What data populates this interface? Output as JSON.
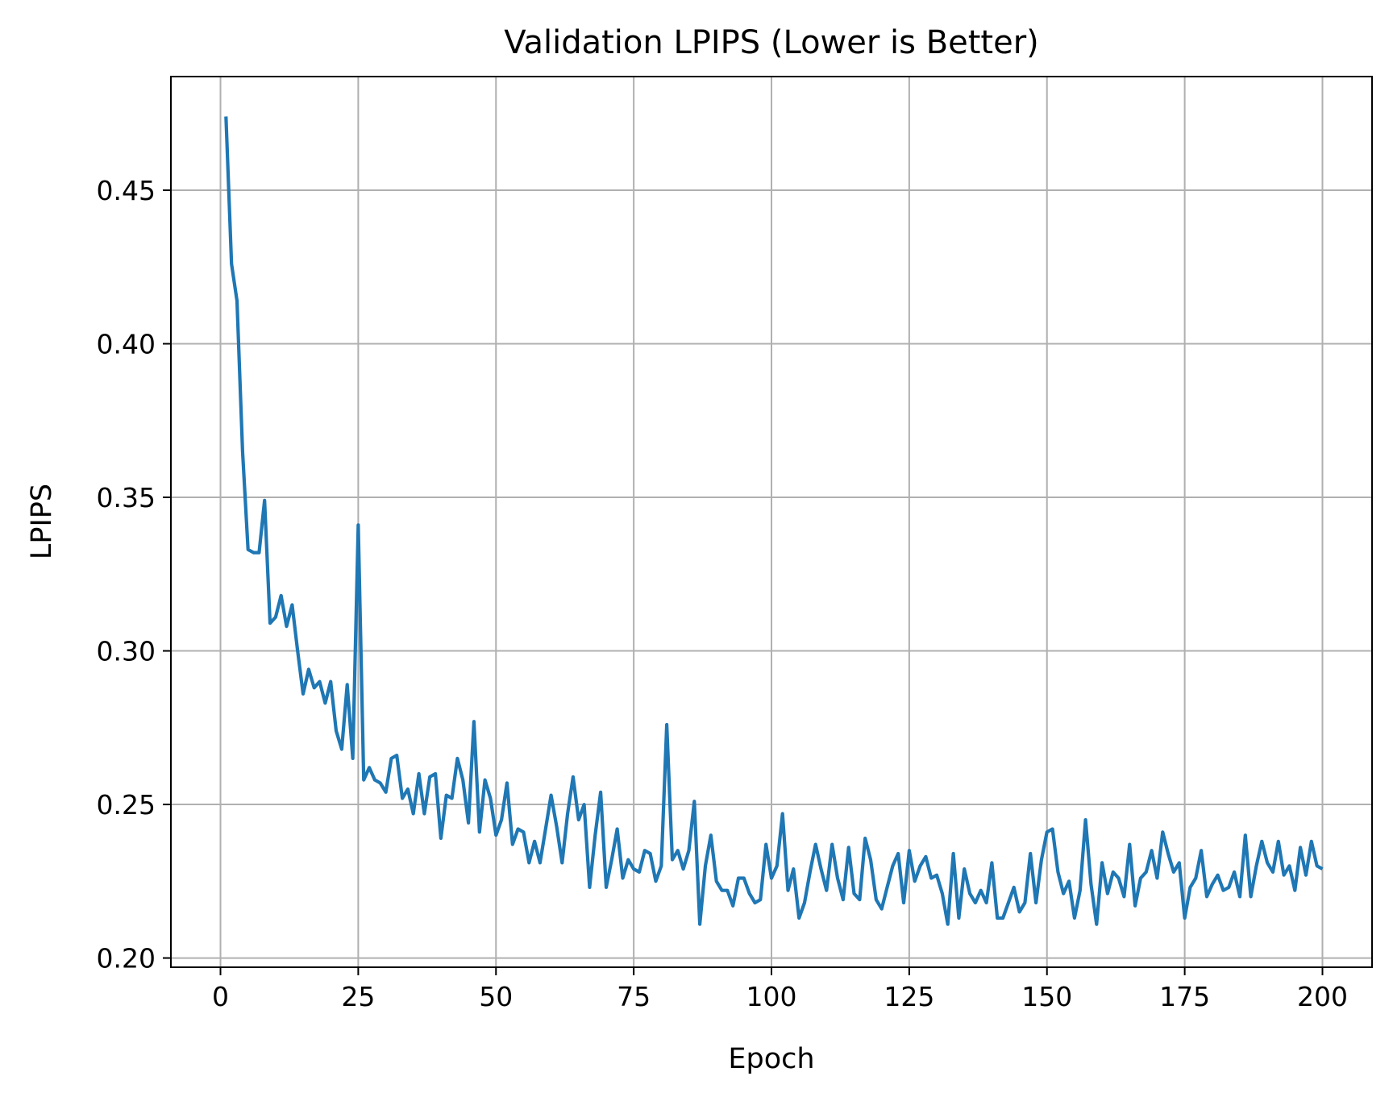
{
  "chart_data": {
    "type": "line",
    "title": "Validation LPIPS (Lower is Better)",
    "xlabel": "Epoch",
    "ylabel": "LPIPS",
    "xlim": [
      -9,
      209
    ],
    "ylim": [
      0.197,
      0.487
    ],
    "xticks": [
      0,
      25,
      50,
      75,
      100,
      125,
      150,
      175,
      200
    ],
    "xtick_labels": [
      "0",
      "25",
      "50",
      "75",
      "100",
      "125",
      "150",
      "175",
      "200"
    ],
    "yticks": [
      0.2,
      0.25,
      0.3,
      0.35,
      0.4,
      0.45
    ],
    "ytick_labels": [
      "0.20",
      "0.25",
      "0.30",
      "0.35",
      "0.40",
      "0.45"
    ],
    "grid": true,
    "colors": {
      "line": "#1f77b4",
      "grid": "#b0b0b0",
      "axes": "#000000"
    },
    "series": [
      {
        "x_start": 1,
        "x_step": 1,
        "values": [
          0.474,
          0.426,
          0.414,
          0.365,
          0.333,
          0.332,
          0.332,
          0.349,
          0.309,
          0.311,
          0.318,
          0.308,
          0.315,
          0.3,
          0.286,
          0.294,
          0.288,
          0.29,
          0.283,
          0.29,
          0.274,
          0.268,
          0.289,
          0.265,
          0.341,
          0.258,
          0.262,
          0.258,
          0.257,
          0.254,
          0.265,
          0.266,
          0.252,
          0.255,
          0.247,
          0.26,
          0.247,
          0.259,
          0.26,
          0.239,
          0.253,
          0.252,
          0.265,
          0.258,
          0.244,
          0.277,
          0.241,
          0.258,
          0.252,
          0.24,
          0.245,
          0.257,
          0.237,
          0.242,
          0.241,
          0.231,
          0.238,
          0.231,
          0.242,
          0.253,
          0.243,
          0.231,
          0.247,
          0.259,
          0.245,
          0.25,
          0.223,
          0.24,
          0.254,
          0.223,
          0.232,
          0.242,
          0.226,
          0.232,
          0.229,
          0.228,
          0.235,
          0.234,
          0.225,
          0.23,
          0.276,
          0.232,
          0.235,
          0.229,
          0.235,
          0.251,
          0.211,
          0.23,
          0.24,
          0.225,
          0.222,
          0.222,
          0.217,
          0.226,
          0.226,
          0.221,
          0.218,
          0.219,
          0.237,
          0.226,
          0.23,
          0.247,
          0.222,
          0.229,
          0.213,
          0.218,
          0.228,
          0.237,
          0.229,
          0.222,
          0.237,
          0.226,
          0.219,
          0.236,
          0.221,
          0.219,
          0.239,
          0.232,
          0.219,
          0.216,
          0.223,
          0.23,
          0.234,
          0.218,
          0.235,
          0.225,
          0.23,
          0.233,
          0.226,
          0.227,
          0.221,
          0.211,
          0.234,
          0.213,
          0.229,
          0.221,
          0.218,
          0.222,
          0.218,
          0.231,
          0.213,
          0.213,
          0.218,
          0.223,
          0.215,
          0.218,
          0.234,
          0.218,
          0.232,
          0.241,
          0.242,
          0.228,
          0.221,
          0.225,
          0.213,
          0.222,
          0.245,
          0.224,
          0.211,
          0.231,
          0.221,
          0.228,
          0.226,
          0.22,
          0.237,
          0.217,
          0.226,
          0.228,
          0.235,
          0.226,
          0.241,
          0.234,
          0.228,
          0.231,
          0.213,
          0.223,
          0.226,
          0.235,
          0.22,
          0.224,
          0.227,
          0.222,
          0.223,
          0.228,
          0.22,
          0.24,
          0.22,
          0.23,
          0.238,
          0.231,
          0.228,
          0.238,
          0.227,
          0.23,
          0.222,
          0.236,
          0.227,
          0.238,
          0.23,
          0.229
        ]
      }
    ]
  }
}
